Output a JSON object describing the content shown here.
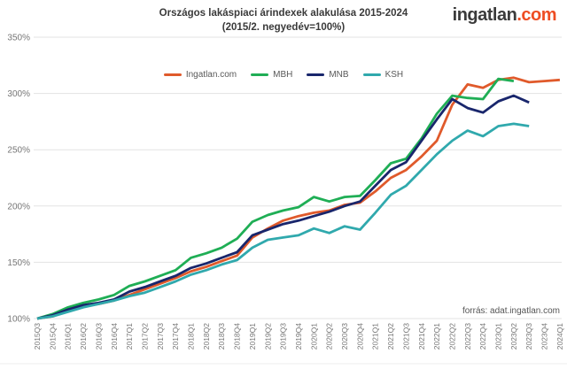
{
  "header": {
    "title_line1": "Országos lakáspiaci árindexek alakulása 2015-2024",
    "title_line2": "(2015/2. negyedév=100%)",
    "logo_text": "ingatlan",
    "logo_suffix": ".com"
  },
  "source_note": "forrás: adat.ingatlan.com",
  "colors": {
    "logo_dark": "#3B3B3B",
    "logo_accent": "#EE4D23",
    "grid": "#E3E3E3",
    "axis_text": "#767676",
    "title_text": "#3A3A3A",
    "legend_text": "#595959"
  },
  "chart_data": {
    "type": "line",
    "title": "Országos lakáspiaci árindexek alakulása 2015-2024 (2015/2. negyedév=100%)",
    "xlabel": "",
    "ylabel": "",
    "ylim": [
      100,
      350
    ],
    "grid": "horizontal",
    "legend_position": "top-center",
    "yticks": [
      {
        "v": 100,
        "label": "100%"
      },
      {
        "v": 150,
        "label": "150%"
      },
      {
        "v": 200,
        "label": "200%"
      },
      {
        "v": 250,
        "label": "250%"
      },
      {
        "v": 300,
        "label": "300%"
      },
      {
        "v": 350,
        "label": "350%"
      }
    ],
    "categories": [
      "2015Q3",
      "2015Q4",
      "2016Q1",
      "2016Q2",
      "2016Q3",
      "2016Q4",
      "2017Q1",
      "2017Q2",
      "2017Q3",
      "2017Q4",
      "2018Q1",
      "2018Q2",
      "2018Q3",
      "2018Q4",
      "2019Q1",
      "2019Q2",
      "2019Q3",
      "2019Q4",
      "2020Q1",
      "2020Q2",
      "2020Q3",
      "2020Q4",
      "2021Q1",
      "2021Q2",
      "2021Q3",
      "2021Q4",
      "2022Q1",
      "2022Q2",
      "2022Q3",
      "2022Q4",
      "2023Q1",
      "2023Q2",
      "2023Q3",
      "2023Q4",
      "2024Q1"
    ],
    "series": [
      {
        "name": "Ingatlan.com",
        "color": "#E05A2B",
        "values": [
          100,
          102,
          107,
          111,
          113,
          116,
          121,
          126,
          131,
          136,
          142,
          146,
          151,
          156,
          172,
          180,
          187,
          191,
          194,
          196,
          201,
          203,
          213,
          225,
          232,
          244,
          258,
          290,
          308,
          305,
          312,
          314,
          310,
          311,
          312
        ]
      },
      {
        "name": "MBH",
        "color": "#1FAE55",
        "values": [
          100,
          104,
          110,
          114,
          117,
          121,
          129,
          133,
          138,
          143,
          154,
          158,
          163,
          171,
          186,
          192,
          196,
          199,
          208,
          204,
          208,
          209,
          223,
          238,
          242,
          260,
          282,
          298,
          296,
          295,
          313,
          311,
          null,
          null,
          null
        ]
      },
      {
        "name": "MNB",
        "color": "#19266C",
        "values": [
          100,
          103,
          108,
          112,
          114,
          117,
          124,
          128,
          133,
          138,
          145,
          149,
          154,
          159,
          174,
          179,
          184,
          187,
          191,
          195,
          200,
          204,
          218,
          232,
          239,
          258,
          277,
          295,
          287,
          283,
          293,
          298,
          292,
          null,
          null
        ]
      },
      {
        "name": "KSH",
        "color": "#30A9AD",
        "values": [
          100,
          102,
          106,
          110,
          113,
          116,
          120,
          123,
          128,
          133,
          139,
          143,
          148,
          152,
          163,
          170,
          172,
          174,
          180,
          176,
          182,
          179,
          194,
          210,
          218,
          232,
          246,
          258,
          267,
          262,
          271,
          273,
          271,
          null,
          null
        ]
      }
    ]
  }
}
